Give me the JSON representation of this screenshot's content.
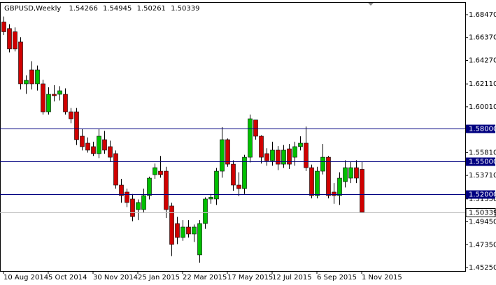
{
  "chart_data": {
    "type": "candlestick",
    "title": "GBPUSD,Weekly",
    "categories": [
      "10 Aug 2014",
      null,
      null,
      null,
      null,
      null,
      null,
      null,
      "5 Oct 2014",
      null,
      null,
      null,
      null,
      null,
      null,
      null,
      "30 Nov 2014",
      null,
      null,
      null,
      null,
      null,
      null,
      null,
      "25 Jan 2015",
      null,
      null,
      null,
      null,
      null,
      null,
      null,
      "22 Mar 2015",
      null,
      null,
      null,
      null,
      null,
      null,
      null,
      "17 May 2015",
      null,
      null,
      null,
      null,
      null,
      null,
      null,
      "12 Jul 2015",
      null,
      null,
      null,
      null,
      null,
      null,
      null,
      "6 Sep 2015",
      null,
      null,
      null,
      null,
      null,
      null,
      null,
      "1 Nov 2015"
    ],
    "open": [
      1.678,
      1.672,
      1.669,
      1.6597,
      1.6212,
      1.634,
      1.6212,
      1.6212,
      1.5955,
      1.6116,
      1.6116,
      1.6116,
      1.5955,
      1.5955,
      1.5731,
      1.5667,
      1.5635,
      1.5571,
      1.5699,
      1.5635,
      1.5571,
      1.5282,
      1.5218,
      1.5154,
      1.5057,
      1.5057,
      1.5186,
      1.5378,
      1.541,
      1.541,
      1.509,
      1.4929,
      1.4801,
      1.4897,
      1.4833,
      1.4641,
      1.4929,
      1.5154,
      1.5154,
      1.541,
      1.5699,
      1.5474,
      1.5282,
      1.525,
      1.5538,
      1.588,
      1.5731,
      1.5571,
      1.5506,
      1.5603,
      1.5474,
      1.5615,
      1.5538,
      1.5635,
      1.5667,
      1.5442,
      1.5186,
      1.541,
      1.5538,
      1.5218,
      1.5186,
      1.5314,
      1.5346,
      1.5442,
      1.54266
    ],
    "high": [
      1.683,
      1.676,
      1.673,
      1.664,
      1.629,
      1.642,
      1.638,
      1.625,
      1.618,
      1.62,
      1.619,
      1.617,
      1.599,
      1.599,
      1.58,
      1.572,
      1.568,
      1.58,
      1.578,
      1.569,
      1.56,
      1.534,
      1.525,
      1.52,
      1.515,
      1.525,
      1.536,
      1.548,
      1.555,
      1.545,
      1.512,
      1.499,
      1.496,
      1.496,
      1.492,
      1.496,
      1.517,
      1.52,
      1.544,
      1.5815,
      1.571,
      1.551,
      1.54,
      1.556,
      1.593,
      1.588,
      1.574,
      1.562,
      1.568,
      1.564,
      1.565,
      1.566,
      1.568,
      1.573,
      1.582,
      1.547,
      1.545,
      1.566,
      1.555,
      1.53,
      1.54,
      1.551,
      1.55,
      1.551,
      1.54945
    ],
    "low": [
      1.666,
      1.65,
      1.651,
      1.616,
      1.612,
      1.616,
      1.615,
      1.593,
      1.593,
      1.605,
      1.606,
      1.593,
      1.585,
      1.565,
      1.56,
      1.558,
      1.555,
      1.553,
      1.557,
      1.55,
      1.525,
      1.512,
      1.508,
      1.495,
      1.496,
      1.503,
      1.515,
      1.534,
      1.535,
      1.498,
      1.463,
      1.474,
      1.477,
      1.48,
      1.476,
      1.457,
      1.488,
      1.511,
      1.51,
      1.535,
      1.545,
      1.523,
      1.518,
      1.52,
      1.549,
      1.57,
      1.548,
      1.546,
      1.546,
      1.542,
      1.544,
      1.543,
      1.546,
      1.56,
      1.541,
      1.516,
      1.516,
      1.538,
      1.516,
      1.511,
      1.51,
      1.526,
      1.53,
      1.53,
      1.50261
    ],
    "close": [
      1.669,
      1.6533,
      1.6533,
      1.6212,
      1.6244,
      1.6212,
      1.634,
      1.5955,
      1.6116,
      1.6103,
      1.6148,
      1.5955,
      1.5891,
      1.5699,
      1.5635,
      1.5603,
      1.5571,
      1.5731,
      1.5603,
      1.5538,
      1.5282,
      1.5186,
      1.5122,
      1.4993,
      1.5122,
      1.5186,
      1.5346,
      1.5442,
      1.5378,
      1.5057,
      1.4737,
      1.4801,
      1.4897,
      1.4833,
      1.4897,
      1.4929,
      1.5154,
      1.517,
      1.541,
      1.5699,
      1.5474,
      1.5282,
      1.525,
      1.5538,
      1.5891,
      1.5731,
      1.5538,
      1.5506,
      1.5603,
      1.5474,
      1.5603,
      1.5474,
      1.5635,
      1.5667,
      1.5442,
      1.5186,
      1.541,
      1.5538,
      1.5186,
      1.5186,
      1.5346,
      1.5442,
      1.5442,
      1.5346,
      1.50339
    ],
    "up_color": "#00c000",
    "down_color": "#d00000",
    "ylim": [
      1.4525,
      1.6847
    ],
    "yticks": [
      {
        "value": 1.6847,
        "label": "1.68470"
      },
      {
        "value": 1.6637,
        "label": "1.66370"
      },
      {
        "value": 1.6427,
        "label": "1.64270"
      },
      {
        "value": 1.6211,
        "label": "1.62110"
      },
      {
        "value": 1.6001,
        "label": "1.60010"
      },
      {
        "value": 1.5581,
        "label": "1.55810"
      },
      {
        "value": 1.5371,
        "label": "1.53710"
      },
      {
        "value": 1.5155,
        "label": "1.51550"
      },
      {
        "value": 1.4945,
        "label": "1.49450"
      },
      {
        "value": 1.4735,
        "label": "1.47350"
      },
      {
        "value": 1.4525,
        "label": "1.45250"
      }
    ],
    "levels": [
      {
        "value": 1.58,
        "label": "1.58000"
      },
      {
        "value": 1.55,
        "label": "1.55000"
      },
      {
        "value": 1.52,
        "label": "1.52000"
      }
    ],
    "level_color": "#000080"
  }
}
